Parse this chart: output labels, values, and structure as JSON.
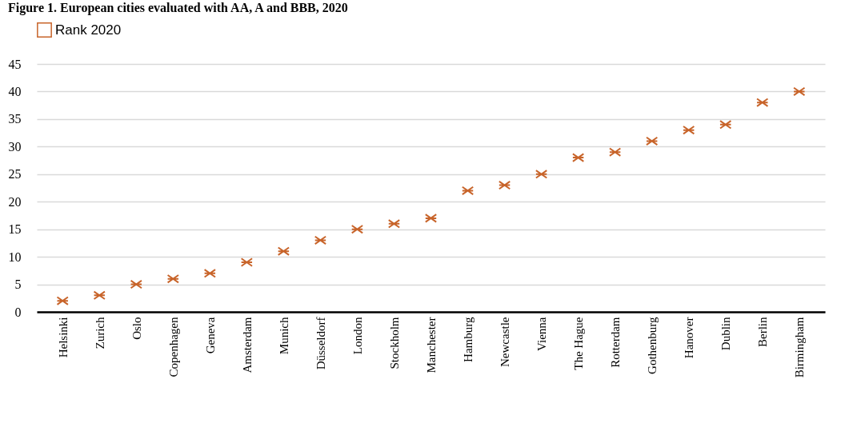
{
  "chart_data": {
    "type": "scatter",
    "title": "Figure 1. European cities evaluated with AA, A and BBB, 2020",
    "categories": [
      "Helsinki",
      "Zurich",
      "Oslo",
      "Copenhagen",
      "Geneva",
      "Amsterdam",
      "Munich",
      "Düsseldorf",
      "London",
      "Stockholm",
      "Manchester",
      "Hamburg",
      "Newcastle",
      "Vienna",
      "The Hague",
      "Rotterdam",
      "Gothenburg",
      "Hanover",
      "Dublin",
      "Berlin",
      "Birmingham"
    ],
    "series": [
      {
        "name": "Rank 2020",
        "color": "#c8642a",
        "values": [
          2,
          3,
          5,
          6,
          7,
          9,
          11,
          13,
          15,
          16,
          17,
          22,
          23,
          25,
          28,
          29,
          31,
          33,
          34,
          38,
          40
        ]
      }
    ],
    "ylim": [
      0,
      45
    ],
    "yticks": [
      0,
      5,
      10,
      15,
      20,
      25,
      30,
      35,
      40,
      45
    ],
    "grid": "y",
    "legend": "top",
    "marker": "cross"
  }
}
